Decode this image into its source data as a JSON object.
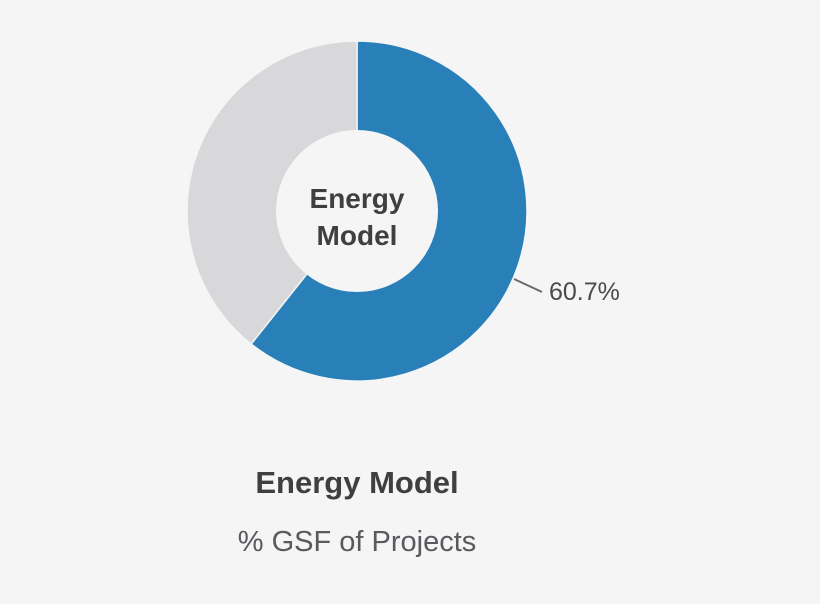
{
  "chart_data": {
    "type": "pie",
    "style": "donut",
    "title": "Energy Model",
    "subtitle": "% GSF of Projects",
    "center_label_lines": [
      "Energy",
      "Model"
    ],
    "slices": [
      {
        "value": 60.7,
        "label": "60.7%",
        "color": "#2980b9"
      },
      {
        "value": 39.3,
        "label": "",
        "color": "#d8d8da"
      }
    ]
  }
}
